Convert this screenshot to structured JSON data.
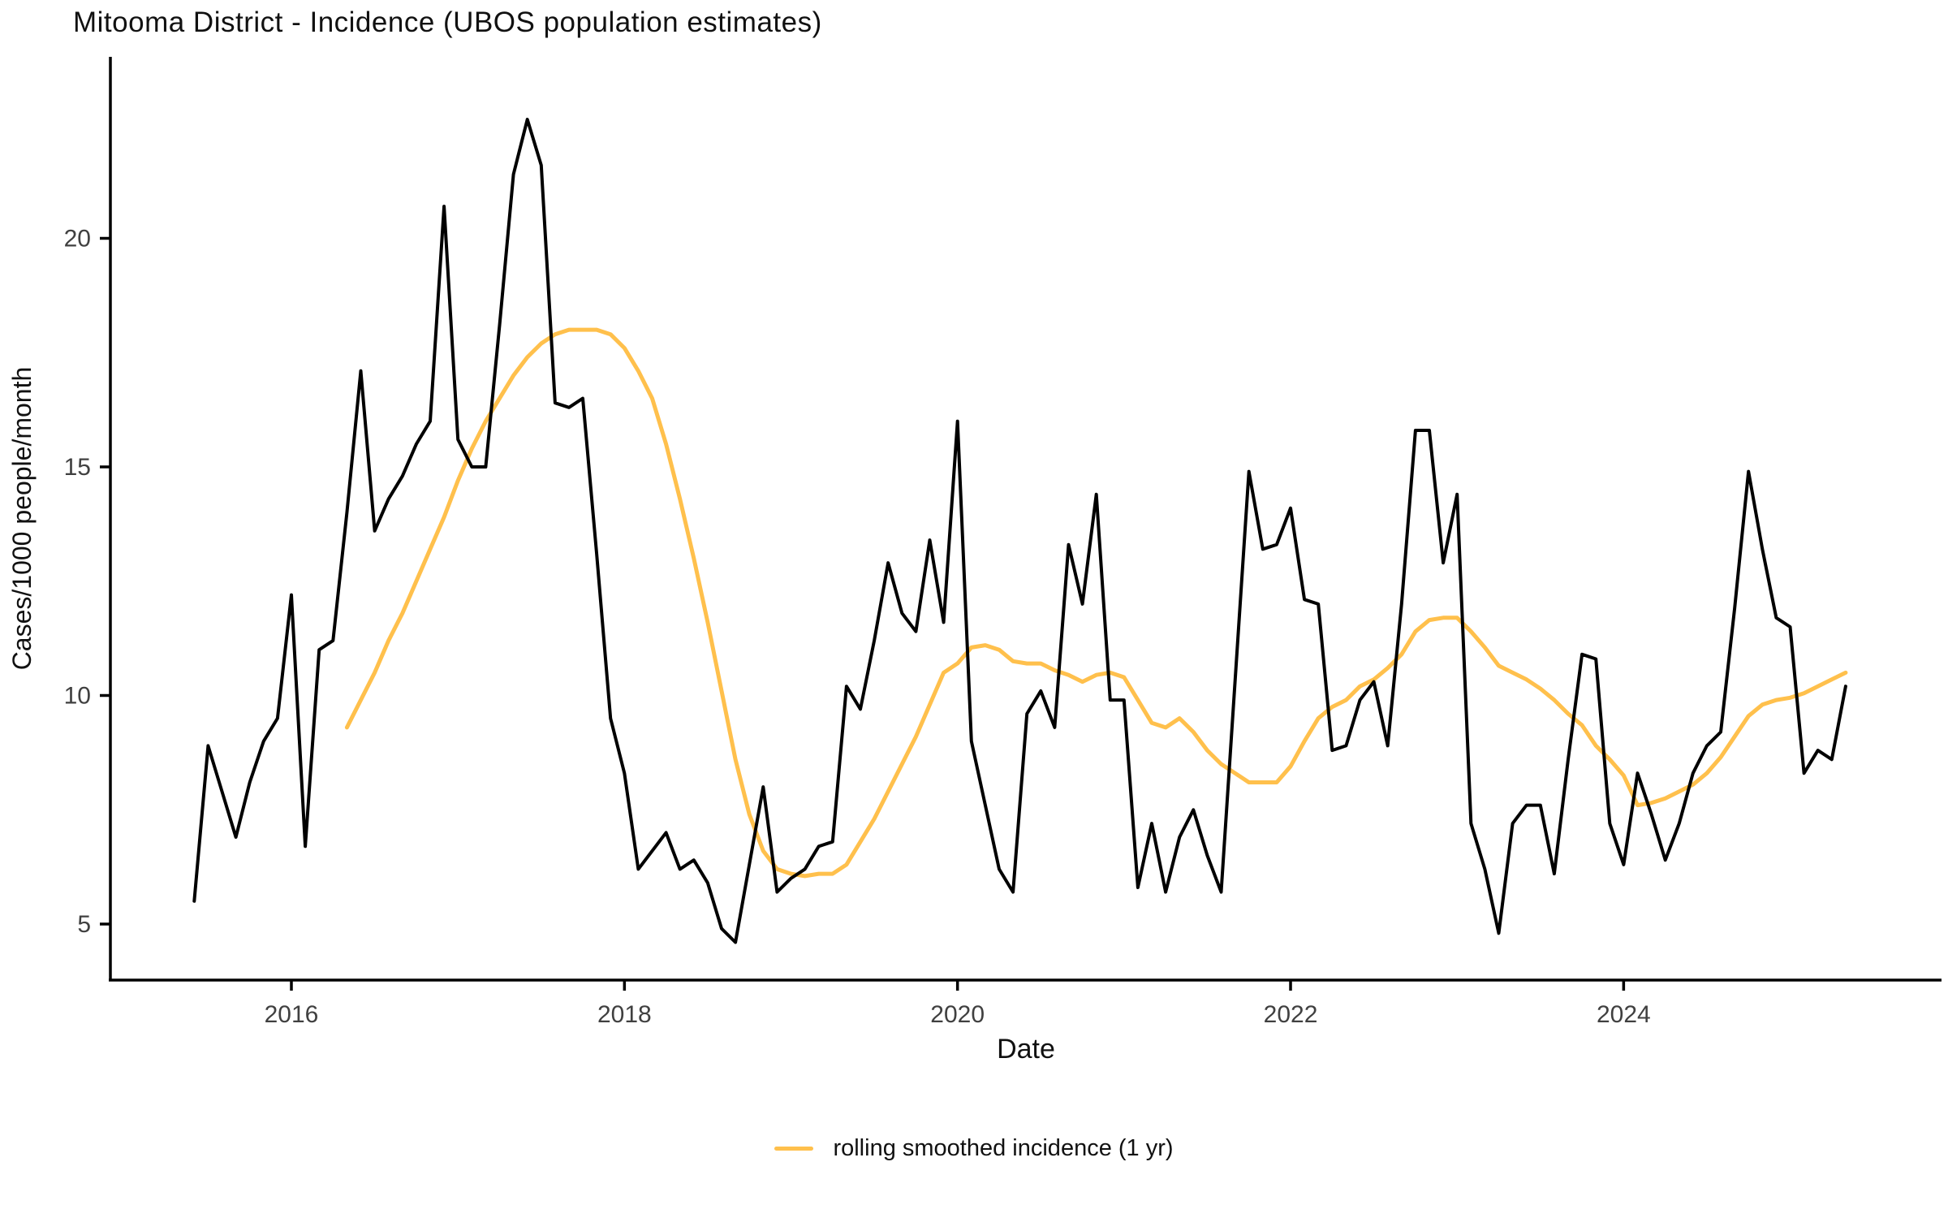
{
  "title": "Mitooma District - Incidence (UBOS population estimates)",
  "axes": {
    "xlabel": "Date",
    "ylabel": "Cases/1000 people/month",
    "xticks": [
      "2016",
      "2018",
      "2020",
      "2022",
      "2024"
    ],
    "yticks": [
      "5",
      "10",
      "15",
      "20"
    ]
  },
  "legend": {
    "label": "rolling smoothed incidence (1 yr)"
  },
  "colors": {
    "monthly_line": "#000000",
    "rolling_line": "#FFC04C",
    "axis": "#000000",
    "tick_label": "#404040",
    "text": "#111111"
  },
  "chart_data": {
    "type": "line",
    "title": "Mitooma District - Incidence (UBOS population estimates)",
    "xlabel": "Date",
    "ylabel": "Cases/1000 people/month",
    "ylim": [
      3.8,
      23.3
    ],
    "xlim_years": [
      2015.3,
      2025.55
    ],
    "grid": false,
    "legend_position": "bottom-center",
    "x_tick_years": [
      2016,
      2018,
      2020,
      2022,
      2024
    ],
    "y_ticks": [
      5,
      10,
      15,
      20
    ],
    "series": [
      {
        "name": "monthly incidence",
        "color": "#000000",
        "start": "2015-06",
        "frequency": "monthly",
        "values": [
          5.5,
          8.9,
          7.9,
          6.9,
          8.1,
          9.0,
          9.5,
          12.2,
          6.7,
          11.0,
          11.2,
          14.0,
          17.1,
          13.6,
          14.3,
          14.8,
          15.5,
          16.0,
          20.7,
          15.6,
          15.0,
          15.0,
          18.1,
          21.4,
          22.6,
          21.6,
          16.4,
          16.3,
          16.5,
          13.1,
          9.5,
          8.3,
          6.2,
          6.6,
          7.0,
          6.2,
          6.4,
          5.9,
          4.9,
          4.6,
          6.3,
          8.0,
          5.7,
          6.0,
          6.2,
          6.7,
          6.8,
          10.2,
          9.7,
          11.2,
          12.9,
          11.8,
          11.4,
          13.4,
          11.6,
          16.0,
          9.0,
          7.6,
          6.2,
          5.7,
          9.6,
          10.1,
          9.3,
          13.3,
          12.0,
          14.4,
          9.9,
          9.9,
          5.8,
          7.2,
          5.7,
          6.9,
          7.5,
          6.5,
          5.7,
          10.3,
          14.9,
          13.2,
          13.3,
          14.1,
          12.1,
          12.0,
          8.8,
          8.9,
          9.9,
          10.3,
          8.9,
          12.0,
          15.8,
          15.8,
          12.9,
          14.4,
          7.2,
          6.2,
          4.8,
          7.2,
          7.6,
          7.6,
          6.1,
          8.6,
          10.9,
          10.8,
          7.2,
          6.3,
          8.3,
          7.4,
          6.4,
          7.2,
          8.3,
          8.9,
          9.2,
          11.9,
          14.9,
          13.2,
          11.7,
          11.5,
          8.3,
          8.8,
          8.6,
          10.2
        ]
      },
      {
        "name": "rolling smoothed incidence (1 yr)",
        "color": "#FFC04C",
        "start": "2016-05",
        "frequency": "monthly",
        "values": [
          9.3,
          9.9,
          10.5,
          11.2,
          11.8,
          12.5,
          13.2,
          13.9,
          14.7,
          15.4,
          16.0,
          16.5,
          17.0,
          17.4,
          17.7,
          17.9,
          18.0,
          18.0,
          18.0,
          17.9,
          17.6,
          17.1,
          16.5,
          15.5,
          14.3,
          13.0,
          11.6,
          10.1,
          8.6,
          7.4,
          6.6,
          6.2,
          6.1,
          6.05,
          6.1,
          6.1,
          6.3,
          6.8,
          7.3,
          7.9,
          8.5,
          9.1,
          9.8,
          10.5,
          10.7,
          11.05,
          11.1,
          11.0,
          10.75,
          10.7,
          10.7,
          10.55,
          10.45,
          10.3,
          10.45,
          10.5,
          10.4,
          9.9,
          9.4,
          9.3,
          9.5,
          9.2,
          8.8,
          8.5,
          8.3,
          8.1,
          8.1,
          8.1,
          8.45,
          9.0,
          9.5,
          9.75,
          9.9,
          10.2,
          10.35,
          10.6,
          10.9,
          11.4,
          11.65,
          11.7,
          11.7,
          11.4,
          11.05,
          10.65,
          10.5,
          10.35,
          10.15,
          9.9,
          9.6,
          9.35,
          8.9,
          8.6,
          8.25,
          7.6,
          7.65,
          7.75,
          7.9,
          8.05,
          8.3,
          8.65,
          9.1,
          9.55,
          9.8,
          9.9,
          9.95,
          10.05,
          10.2,
          10.35,
          10.5
        ]
      }
    ]
  }
}
